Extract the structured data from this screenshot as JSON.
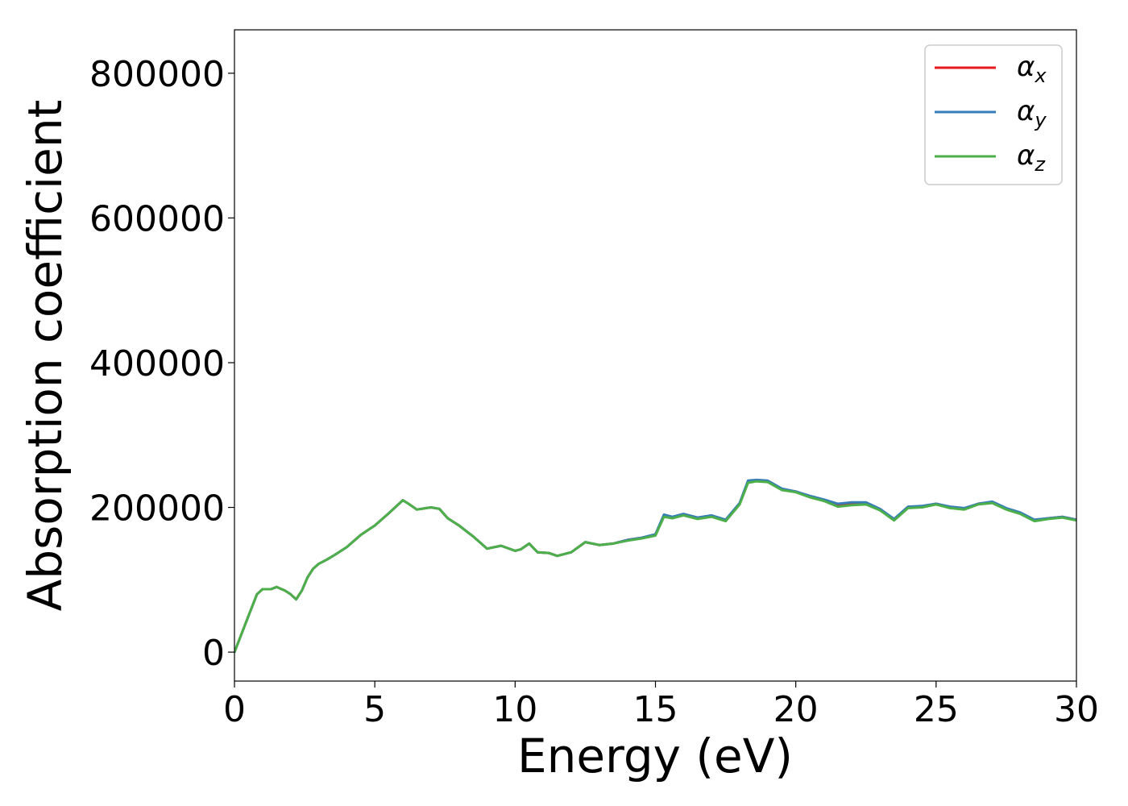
{
  "chart_data": {
    "type": "line",
    "xlabel": "Energy (eV)",
    "ylabel": "Absorption coefficient",
    "xlim": [
      0,
      30
    ],
    "ylim": [
      -40000,
      860000
    ],
    "xticks": [
      0,
      5,
      10,
      15,
      20,
      25,
      30
    ],
    "xtick_labels": [
      "0",
      "5",
      "10",
      "15",
      "20",
      "25",
      "30"
    ],
    "yticks": [
      0,
      200000,
      400000,
      600000,
      800000
    ],
    "ytick_labels": [
      "0",
      "200000",
      "400000",
      "600000",
      "800000"
    ],
    "grid": false,
    "legend_position": "top-right",
    "series": [
      {
        "name": "α",
        "name_subscript": "x",
        "color": "#e41a1c",
        "x": [
          0,
          0.2,
          0.5,
          0.8,
          1.0,
          1.3,
          1.5,
          1.8,
          2.0,
          2.2,
          2.4,
          2.6,
          2.8,
          3.0,
          3.3,
          3.6,
          4.0,
          4.5,
          5.0,
          5.5,
          6.0,
          6.2,
          6.5,
          7.0,
          7.3,
          7.6,
          8.0,
          8.5,
          9.0,
          9.5,
          10.0,
          10.2,
          10.5,
          10.8,
          11.2,
          11.5,
          12.0,
          12.5,
          13.0,
          13.5,
          14.0,
          14.5,
          15.0,
          15.3,
          15.6,
          16.0,
          16.5,
          17.0,
          17.5,
          18.0,
          18.3,
          18.6,
          19.0,
          19.5,
          20.0,
          20.5,
          21.0,
          21.5,
          22.0,
          22.5,
          23.0,
          23.5,
          24.0,
          24.5,
          25.0,
          25.5,
          26.0,
          26.5,
          27.0,
          27.5,
          28.0,
          28.5,
          29.0,
          29.5,
          30.0
        ],
        "y": [
          0,
          20000,
          50000,
          80000,
          87000,
          87000,
          90000,
          85000,
          80000,
          73000,
          85000,
          103000,
          115000,
          122000,
          128000,
          135000,
          145000,
          162000,
          175000,
          192000,
          210000,
          205000,
          197000,
          200000,
          198000,
          185000,
          175000,
          160000,
          143000,
          147000,
          140000,
          142000,
          150000,
          138000,
          137000,
          133000,
          138000,
          152000,
          148000,
          150000,
          155000,
          158000,
          162000,
          188000,
          186000,
          190000,
          185000,
          188000,
          182000,
          205000,
          235000,
          237000,
          236000,
          225000,
          222000,
          215000,
          210000,
          203000,
          205000,
          205000,
          197000,
          183000,
          200000,
          201000,
          205000,
          200000,
          198000,
          205000,
          207000,
          198000,
          192000,
          182000,
          185000,
          187000,
          183000
        ]
      },
      {
        "name": "α",
        "name_subscript": "y",
        "color": "#377eb8",
        "x": [
          0,
          0.2,
          0.5,
          0.8,
          1.0,
          1.3,
          1.5,
          1.8,
          2.0,
          2.2,
          2.4,
          2.6,
          2.8,
          3.0,
          3.3,
          3.6,
          4.0,
          4.5,
          5.0,
          5.5,
          6.0,
          6.2,
          6.5,
          7.0,
          7.3,
          7.6,
          8.0,
          8.5,
          9.0,
          9.5,
          10.0,
          10.2,
          10.5,
          10.8,
          11.2,
          11.5,
          12.0,
          12.5,
          13.0,
          13.5,
          14.0,
          14.5,
          15.0,
          15.3,
          15.6,
          16.0,
          16.5,
          17.0,
          17.5,
          18.0,
          18.3,
          18.6,
          19.0,
          19.5,
          20.0,
          20.5,
          21.0,
          21.5,
          22.0,
          22.5,
          23.0,
          23.5,
          24.0,
          24.5,
          25.0,
          25.5,
          26.0,
          26.5,
          27.0,
          27.5,
          28.0,
          28.5,
          29.0,
          29.5,
          30.0
        ],
        "y": [
          0,
          20000,
          50000,
          80000,
          87000,
          87000,
          90000,
          85000,
          80000,
          73000,
          85000,
          103000,
          115000,
          122000,
          128000,
          135000,
          145000,
          162000,
          175000,
          192000,
          210000,
          205000,
          197000,
          200000,
          198000,
          185000,
          175000,
          160000,
          143000,
          147000,
          140000,
          142000,
          150000,
          138000,
          137000,
          133000,
          138000,
          152000,
          148000,
          150000,
          155000,
          158000,
          163000,
          190000,
          187000,
          191000,
          186000,
          189000,
          183000,
          206000,
          237000,
          238000,
          237000,
          226000,
          222000,
          216000,
          211000,
          205000,
          207000,
          207000,
          198000,
          184000,
          201000,
          202000,
          205000,
          201000,
          199000,
          205000,
          208000,
          199000,
          193000,
          183000,
          185000,
          187000,
          183000
        ]
      },
      {
        "name": "α",
        "name_subscript": "z",
        "color": "#4daf4a",
        "x": [
          0,
          0.2,
          0.5,
          0.8,
          1.0,
          1.3,
          1.5,
          1.8,
          2.0,
          2.2,
          2.4,
          2.6,
          2.8,
          3.0,
          3.3,
          3.6,
          4.0,
          4.5,
          5.0,
          5.5,
          6.0,
          6.2,
          6.5,
          7.0,
          7.3,
          7.6,
          8.0,
          8.5,
          9.0,
          9.5,
          10.0,
          10.2,
          10.5,
          10.8,
          11.2,
          11.5,
          12.0,
          12.5,
          13.0,
          13.5,
          14.0,
          14.5,
          15.0,
          15.3,
          15.6,
          16.0,
          16.5,
          17.0,
          17.5,
          18.0,
          18.3,
          18.6,
          19.0,
          19.5,
          20.0,
          20.5,
          21.0,
          21.5,
          22.0,
          22.5,
          23.0,
          23.5,
          24.0,
          24.5,
          25.0,
          25.5,
          26.0,
          26.5,
          27.0,
          27.5,
          28.0,
          28.5,
          29.0,
          29.5,
          30.0
        ],
        "y": [
          0,
          20000,
          50000,
          80000,
          87000,
          87000,
          90000,
          85000,
          80000,
          73000,
          85000,
          103000,
          115000,
          122000,
          128000,
          135000,
          145000,
          162000,
          175000,
          192000,
          210000,
          205000,
          197000,
          200000,
          198000,
          185000,
          175000,
          160000,
          143000,
          147000,
          140000,
          142000,
          150000,
          138000,
          137000,
          133000,
          138000,
          152000,
          148000,
          150000,
          154000,
          157000,
          161000,
          187000,
          185000,
          189000,
          184000,
          187000,
          181000,
          204000,
          234000,
          236000,
          235000,
          224000,
          221000,
          214000,
          209000,
          201000,
          203000,
          204000,
          196000,
          182000,
          199000,
          200000,
          204000,
          199000,
          197000,
          204000,
          206000,
          197000,
          191000,
          181000,
          184000,
          186000,
          182000
        ]
      }
    ]
  }
}
